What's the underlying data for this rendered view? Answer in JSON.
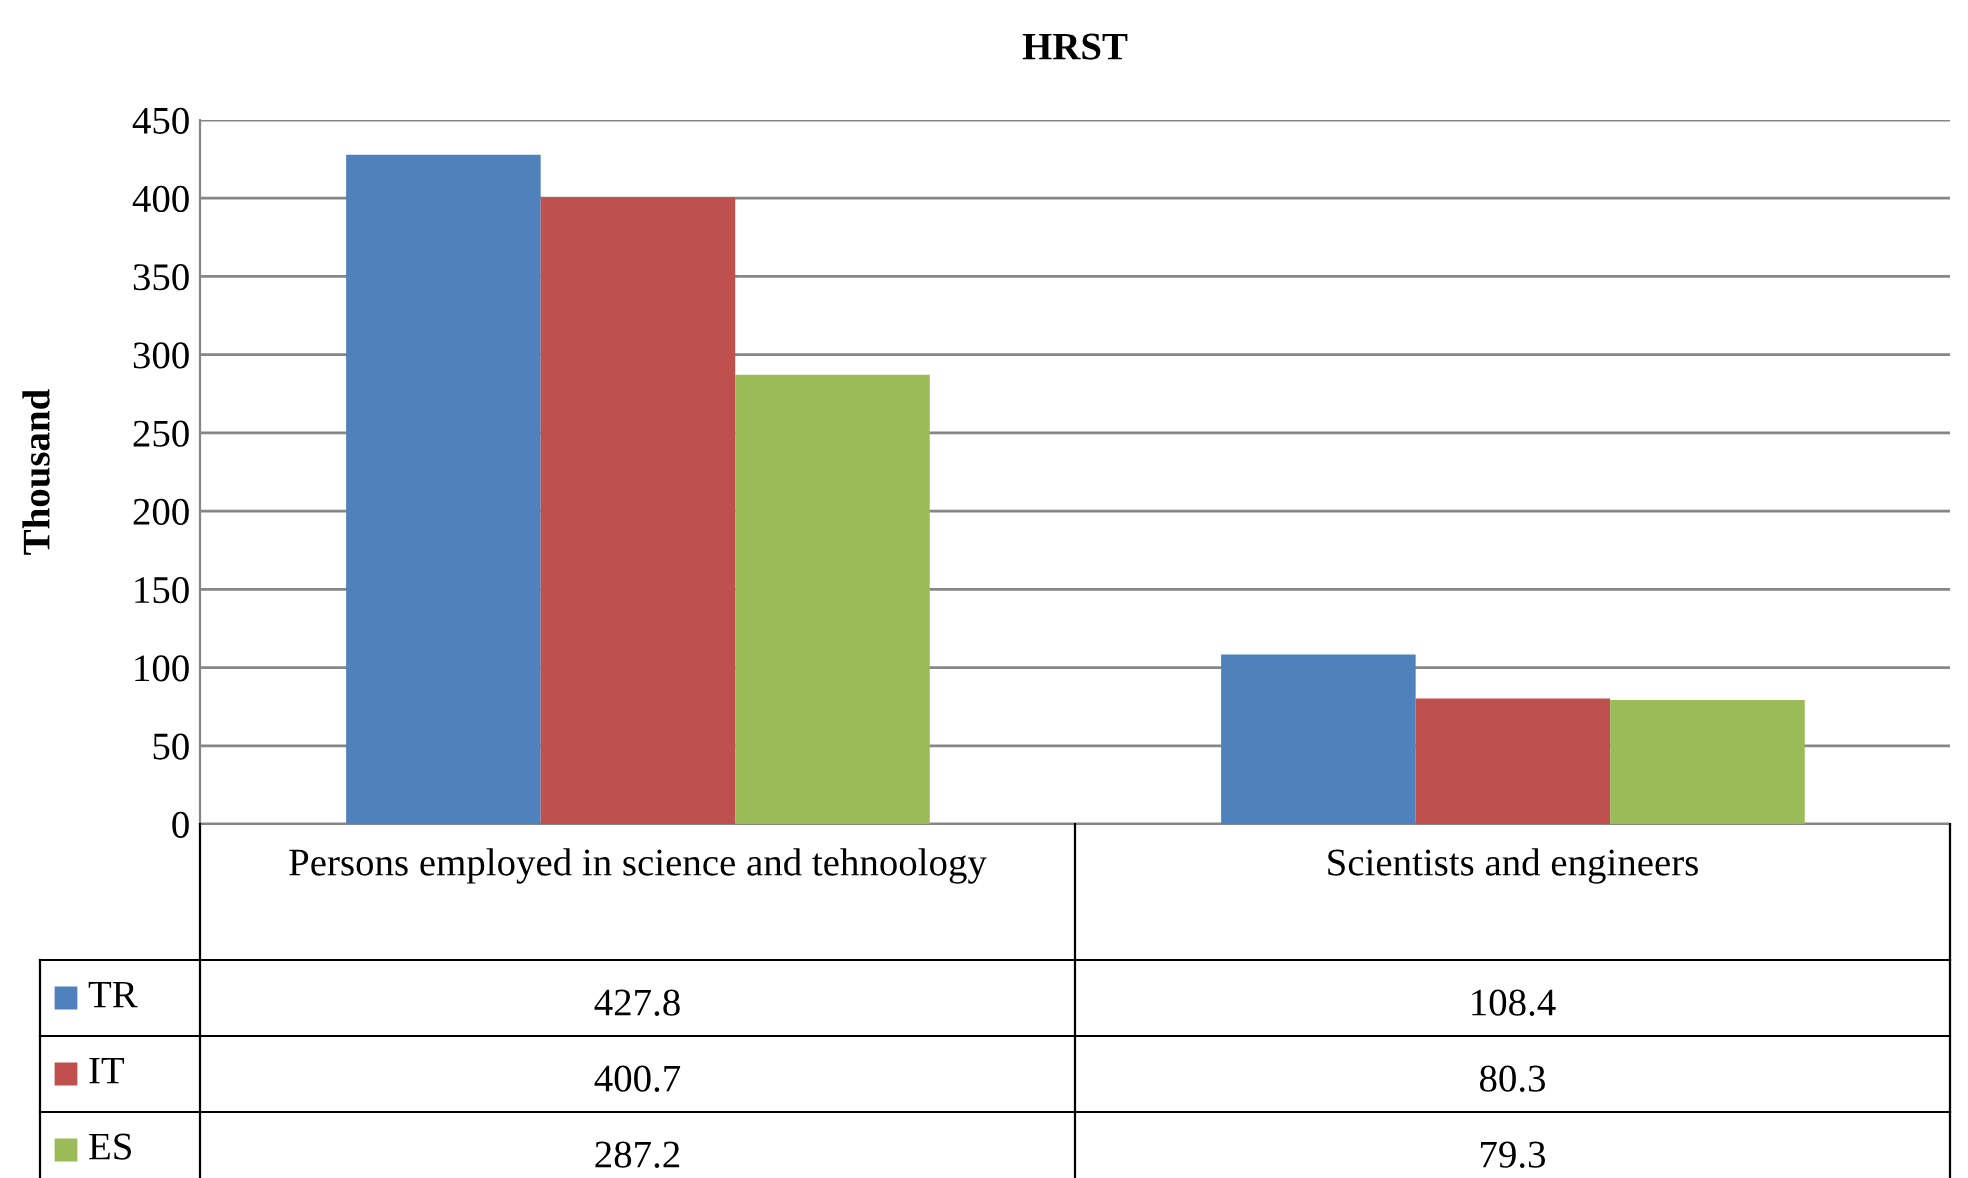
{
  "chart_data": {
    "type": "bar",
    "title": "HRST",
    "ylabel": "Thousand",
    "categories": [
      "Persons employed in science and tehnoology",
      "Scientists and engineers"
    ],
    "series": [
      {
        "name": "TR",
        "color": "#4f81bd",
        "values": [
          427.8,
          108.4
        ]
      },
      {
        "name": "IT",
        "color": "#c0504d",
        "values": [
          400.7,
          80.3
        ]
      },
      {
        "name": "ES",
        "color": "#9bbb59",
        "values": [
          287.2,
          79.3
        ]
      }
    ],
    "ylim": [
      0,
      450
    ],
    "yticks": [
      0,
      50,
      100,
      150,
      200,
      250,
      300,
      350,
      400,
      450
    ],
    "grid": "y",
    "data_labels": true,
    "legend": "bottom"
  }
}
